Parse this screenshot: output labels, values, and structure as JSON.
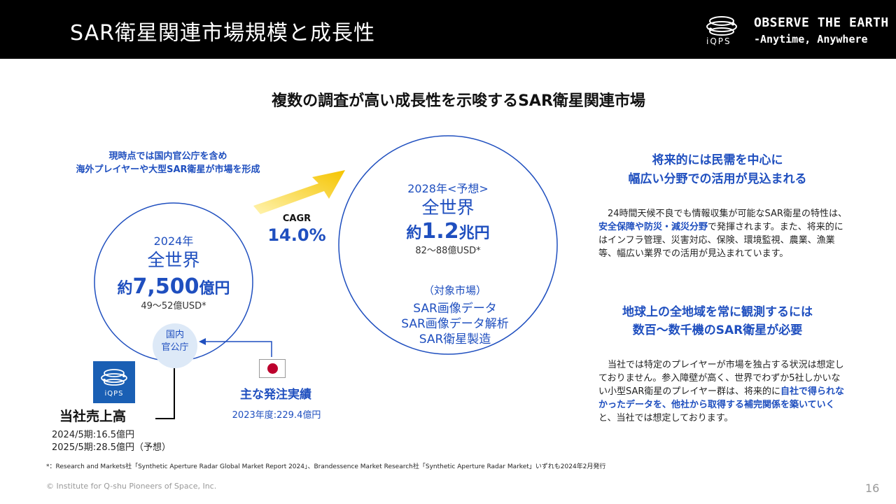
{
  "header": {
    "title": "SAR衛星関連市場規模と成長性",
    "logo_text": "iQPS",
    "tagline_line1": "OBSERVE THE EARTH",
    "tagline_line2": "-Anytime, Anywhere"
  },
  "main_heading": "複数の調査が高い成長性を示唆するSAR衛星関連市場",
  "left_note": {
    "line1": "現時点では国内官公庁を含め",
    "line2": "海外プレイヤーや大型SAR衛星が市場を形成"
  },
  "market_2024": {
    "year": "2024年",
    "region": "全世界",
    "value_prefix": "約",
    "value_number": "7,500",
    "value_unit": "億円",
    "usd": "49～52億USD*"
  },
  "cagr": {
    "label": "CAGR",
    "value": "14.0%"
  },
  "market_2028": {
    "year": "2028年<予想>",
    "region": "全世界",
    "value_prefix": "約",
    "value_number": "1.2",
    "value_unit": "兆円",
    "usd": "82～88億USD*",
    "target_heading": "（対象市場）",
    "targets": [
      "SAR画像データ",
      "SAR画像データ解析",
      "SAR衛星製造"
    ]
  },
  "domestic": {
    "line1": "国内",
    "line2": "官公庁"
  },
  "company_sales": {
    "badge_text": "iQPS",
    "label": "当社売上高",
    "rows": [
      "2024/5期:16.5億円",
      "2025/5期:28.5億円（予想）"
    ]
  },
  "orders": {
    "label": "主な発注実績",
    "value": "2023年度:229.4億円"
  },
  "right_section_1": {
    "heading_line1": "将来的には民需を中心に",
    "heading_line2": "幅広い分野での活用が見込まれる",
    "body_part1": "　24時間天候不良でも情報収集が可能なSAR衛星の特性は、",
    "body_highlight": "安全保障や防災・減災分野",
    "body_part2": "で発揮されます。また、将来的にはインフラ管理、災害対応、保険、環境監視、農業、漁業等、幅広い業界での活用が見込まれています。"
  },
  "right_section_2": {
    "heading_line1": "地球上の全地域を常に観測するには",
    "heading_line2": "数百～数千機のSAR衛星が必要",
    "body_part1": "　当社では特定のプレイヤーが市場を独占する状況は想定しておりません。参入障壁が高く、世界でわずか5社しかいない小型SAR衛星のプレイヤー群は、将来的に",
    "body_highlight": "自社で得られなかったデータを、他社から取得する補完関係を築いていく",
    "body_part2": "と、当社では想定しております。"
  },
  "footnote": "*：Research and Markets社「Synthetic Aperture Radar Global Market Report 2024」、Brandessence Market Research社「Synthetic Aperture Radar Market」いずれも2024年2月発行",
  "copyright": "© Institute for Q-shu Pioneers of Space, Inc.",
  "page_number": "16",
  "colors": {
    "accent_blue": "#1f4fbf",
    "arrow_yellow": "#f5c400",
    "header_bg": "#000000",
    "flag_red": "#bc002d"
  }
}
